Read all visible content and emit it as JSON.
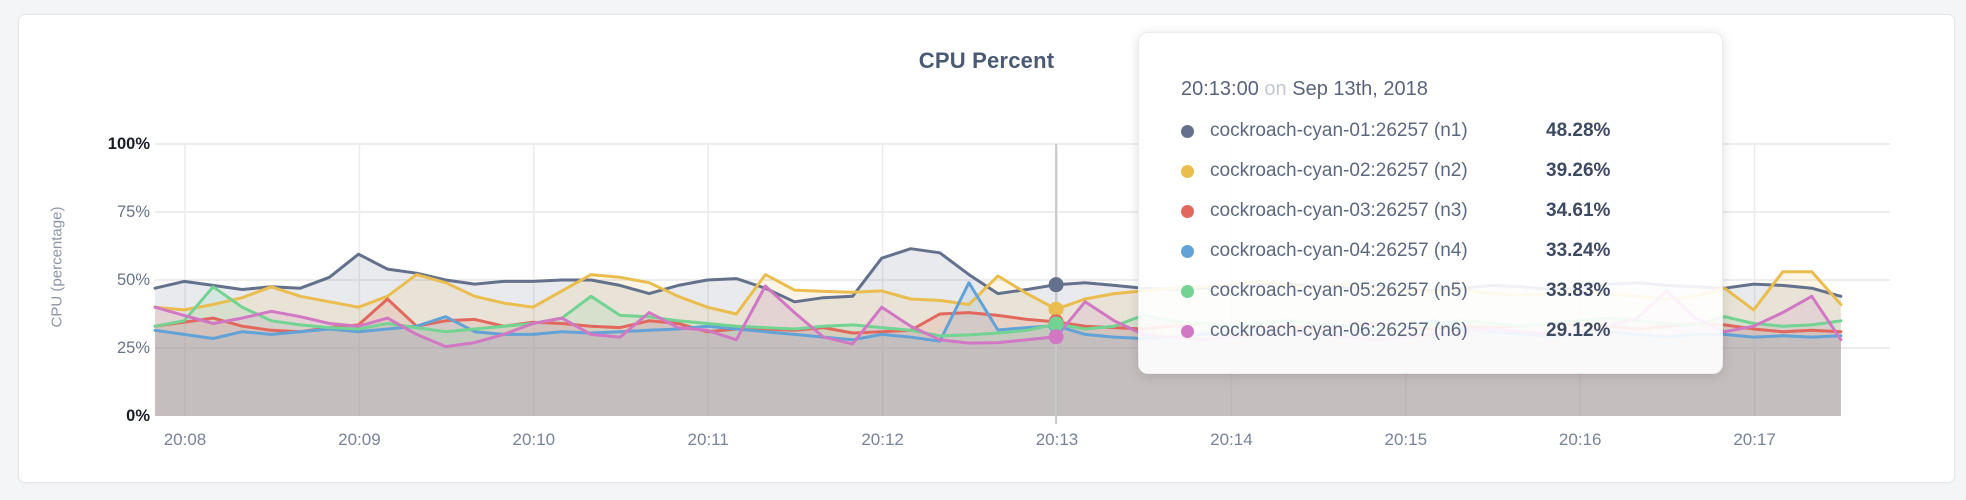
{
  "chart_data": {
    "type": "area",
    "title": "CPU Percent",
    "ylabel": "CPU (percentage)",
    "ylim": [
      0,
      100
    ],
    "grid": true,
    "yticks": [
      {
        "label": "0%",
        "value": 0,
        "emphasis": true
      },
      {
        "label": "25%",
        "value": 25,
        "emphasis": false
      },
      {
        "label": "50%",
        "value": 50,
        "emphasis": false
      },
      {
        "label": "75%",
        "value": 75,
        "emphasis": false
      },
      {
        "label": "100%",
        "value": 100,
        "emphasis": true
      }
    ],
    "xticks": [
      "20:08",
      "20:09",
      "20:10",
      "20:11",
      "20:12",
      "20:13",
      "20:14",
      "20:15",
      "20:16",
      "20:17"
    ],
    "x_start": "20:07:50",
    "x_interval_seconds": 10,
    "hover_index": 31,
    "hover_time": "20:13:00",
    "series": [
      {
        "name": "cockroach-cyan-01:26257 (n1)",
        "color": "#64718c",
        "values": [
          47,
          49.5,
          48,
          46.5,
          47.5,
          47,
          51,
          59.5,
          54,
          52.5,
          50,
          48.5,
          49.5,
          49.5,
          50,
          50,
          48,
          45,
          48,
          50,
          50.5,
          47,
          42,
          43.5,
          44,
          58,
          61.5,
          60,
          52,
          45,
          46.5,
          48.28,
          49,
          48,
          47,
          46.5,
          47,
          47.5,
          48,
          48.5,
          47.5,
          47,
          48,
          46.5,
          46,
          47,
          48,
          47.5,
          46.5,
          47,
          48.5,
          49,
          48,
          47.5,
          47,
          48.5,
          48,
          47,
          44
        ]
      },
      {
        "name": "cockroach-cyan-02:26257 (n2)",
        "color": "#eabd4e",
        "values": [
          40,
          39,
          41,
          43.5,
          47.5,
          44,
          42,
          40,
          44,
          52,
          49,
          44,
          41.5,
          40,
          46,
          52,
          51,
          49,
          44,
          40,
          37.5,
          52,
          46.3,
          45.8,
          45.5,
          46,
          43,
          42.5,
          41,
          51.5,
          45,
          39.26,
          43,
          45,
          46,
          47,
          47.5,
          48,
          49.5,
          48,
          47,
          48.5,
          47,
          46,
          45.5,
          46.5,
          45,
          44.5,
          45,
          46,
          45,
          44,
          43,
          44,
          47,
          39,
          53,
          53,
          41
        ]
      },
      {
        "name": "cockroach-cyan-03:26257 (n3)",
        "color": "#e2685e",
        "values": [
          33,
          34.5,
          36,
          33,
          31.5,
          31,
          32.5,
          33.5,
          43,
          33,
          35,
          35.5,
          33,
          34.5,
          34,
          33,
          32.5,
          35,
          34,
          31,
          32,
          32,
          31.5,
          32.5,
          30.5,
          31,
          31.5,
          37.5,
          38,
          37,
          35.5,
          34.61,
          33,
          32.5,
          32,
          33,
          34,
          33,
          32.5,
          33,
          32,
          33,
          34,
          33,
          32,
          33,
          32.5,
          33,
          34,
          33.5,
          33,
          32,
          33,
          34,
          33.5,
          32,
          31,
          31.5,
          31
        ]
      },
      {
        "name": "cockroach-cyan-04:26257 (n4)",
        "color": "#62a2d7",
        "values": [
          31.5,
          30,
          28.5,
          31,
          30,
          31,
          32,
          31,
          32,
          33,
          36.5,
          31,
          30,
          30,
          31,
          30.5,
          31,
          31.5,
          32,
          33,
          32,
          31,
          30,
          29,
          28,
          30,
          29,
          27.5,
          49,
          31.6,
          32.5,
          33.24,
          30,
          29,
          28.5,
          29,
          30,
          31,
          31.5,
          31,
          30,
          31,
          32,
          33,
          35,
          32,
          31,
          30,
          29.5,
          30,
          31,
          30,
          29,
          30,
          30,
          29,
          29.5,
          29,
          29.5
        ]
      },
      {
        "name": "cockroach-cyan-05:26257 (n5)",
        "color": "#72d392",
        "values": [
          33,
          35,
          47.5,
          40,
          35,
          33.5,
          32.5,
          32,
          34,
          32.5,
          31,
          32,
          33,
          34,
          36,
          44,
          37,
          36.5,
          35,
          34,
          33,
          32.5,
          32,
          33,
          33.5,
          32.5,
          31.5,
          29.5,
          29.8,
          30.5,
          31.5,
          33.83,
          32,
          33,
          37,
          35,
          34,
          33,
          34,
          35,
          34,
          33,
          32,
          33,
          34,
          35,
          34,
          33,
          34,
          35,
          36,
          35,
          34,
          33.5,
          36.5,
          34,
          33,
          33.5,
          35
        ]
      },
      {
        "name": "cockroach-cyan-06:26257 (n6)",
        "color": "#d177c4",
        "values": [
          40,
          37,
          34,
          36,
          38.5,
          36.5,
          34,
          33,
          36,
          30,
          25.5,
          27,
          30,
          34,
          36,
          30,
          29,
          38,
          32.5,
          31.5,
          28,
          47.8,
          38,
          29,
          26.5,
          40,
          33,
          28,
          26.8,
          27,
          28,
          29.12,
          42,
          35,
          30,
          29,
          28,
          29,
          30,
          31,
          30,
          29,
          28,
          29,
          30,
          31,
          32,
          31,
          30,
          31,
          33,
          36,
          46,
          36,
          31,
          33,
          38,
          44,
          28
        ]
      }
    ]
  },
  "tooltip": {
    "time": "20:13:00",
    "on_word": "on",
    "date": "Sep 13th, 2018",
    "rows": [
      {
        "label": "cockroach-cyan-01:26257 (n1)",
        "value": "48.28%",
        "color": "#64718c"
      },
      {
        "label": "cockroach-cyan-02:26257 (n2)",
        "value": "39.26%",
        "color": "#eabd4e"
      },
      {
        "label": "cockroach-cyan-03:26257 (n3)",
        "value": "34.61%",
        "color": "#e2685e"
      },
      {
        "label": "cockroach-cyan-04:26257 (n4)",
        "value": "33.24%",
        "color": "#62a2d7"
      },
      {
        "label": "cockroach-cyan-05:26257 (n5)",
        "value": "33.83%",
        "color": "#72d392"
      },
      {
        "label": "cockroach-cyan-06:26257 (n6)",
        "value": "29.12%",
        "color": "#d177c4"
      }
    ]
  },
  "colors": {
    "grid_h": "#e7e7e8",
    "grid_v": "#ececed",
    "hover_line": "#c8c8c9",
    "area_opacity": 0.15
  }
}
